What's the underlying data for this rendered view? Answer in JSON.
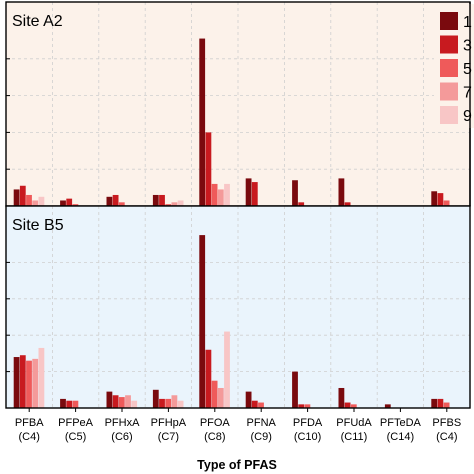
{
  "chart_data": {
    "type": "bar",
    "xlabel": "Type of PFAS",
    "ylabel": "",
    "ylim": [
      0,
      100
    ],
    "grid": true,
    "legend_position": "top-right",
    "categories": [
      {
        "name": "PFBA",
        "carbon": "(C4)"
      },
      {
        "name": "PFPeA",
        "carbon": "(C5)"
      },
      {
        "name": "PFHxA",
        "carbon": "(C6)"
      },
      {
        "name": "PFHpA",
        "carbon": "(C7)"
      },
      {
        "name": "PFOA",
        "carbon": "(C8)"
      },
      {
        "name": "PFNA",
        "carbon": "(C9)"
      },
      {
        "name": "PFDA",
        "carbon": "(C10)"
      },
      {
        "name": "PFUdA",
        "carbon": "(C11)"
      },
      {
        "name": "PFTeDA",
        "carbon": "(C14)"
      },
      {
        "name": "PFBS",
        "carbon": "(C4)"
      }
    ],
    "legend": [
      "1",
      "3",
      "5",
      "7",
      "9"
    ],
    "series_colors": [
      "#7a0a0e",
      "#c81a1f",
      "#ef5a5a",
      "#f49a9a",
      "#f8c6c6"
    ],
    "panels": [
      {
        "label": "Site A2",
        "background": "#fcf2ea",
        "values": [
          [
            9,
            11,
            6,
            3,
            5
          ],
          [
            3,
            4,
            1,
            0,
            0
          ],
          [
            5,
            6,
            2,
            0,
            0
          ],
          [
            6,
            6,
            1,
            2,
            3
          ],
          [
            91,
            40,
            12,
            9,
            12
          ],
          [
            15,
            13,
            0,
            0,
            0
          ],
          [
            14,
            2,
            0,
            0,
            0
          ],
          [
            15,
            2,
            0,
            0,
            0
          ],
          [
            0,
            0,
            0,
            0,
            0
          ],
          [
            8,
            7,
            3,
            0,
            0
          ]
        ]
      },
      {
        "label": "Site B5",
        "background": "#eaf4fc",
        "values": [
          [
            28,
            29,
            26,
            27,
            33
          ],
          [
            5,
            4,
            4,
            0,
            0
          ],
          [
            9,
            7,
            6,
            7,
            4
          ],
          [
            10,
            5,
            5,
            7,
            4
          ],
          [
            95,
            32,
            15,
            11,
            42
          ],
          [
            9,
            4,
            3,
            0,
            0
          ],
          [
            20,
            2,
            2,
            0,
            0
          ],
          [
            11,
            3,
            2,
            0,
            0
          ],
          [
            2,
            0,
            0,
            0,
            0
          ],
          [
            5,
            5,
            3,
            0,
            0
          ]
        ]
      }
    ]
  }
}
